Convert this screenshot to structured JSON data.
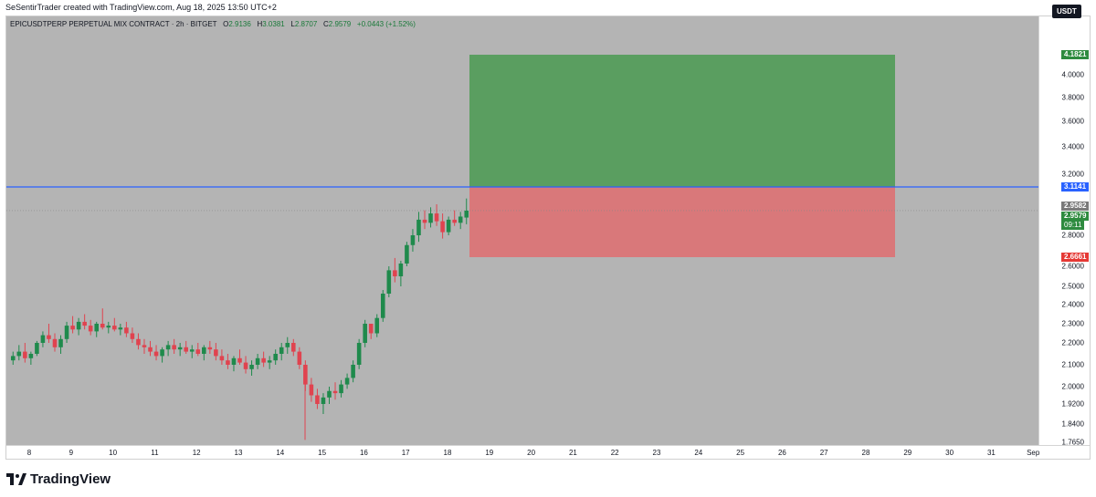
{
  "header": {
    "caption": "SeSentirTrader created with TradingView.com, Aug 18, 2025 13:50 UTC+2"
  },
  "legend": {
    "symbol": "EPICUSDTPERP PERPETUAL MIX CONTRACT · 2h · BITGET",
    "o_label": "O",
    "o": "2.9136",
    "h_label": "H",
    "h": "3.0381",
    "l_label": "L",
    "l": "2.8707",
    "c_label": "C",
    "c": "2.9579",
    "change": "+0.0443 (+1.52%)"
  },
  "currency_button": "USDT",
  "price_axis": {
    "labels": [
      "4.0000",
      "3.8000",
      "3.6000",
      "3.4000",
      "3.2000",
      "2.8000",
      "2.6000",
      "2.5000",
      "2.4000",
      "2.3000",
      "2.2000",
      "2.1000",
      "2.0000",
      "1.9200",
      "1.8400",
      "1.7650"
    ]
  },
  "price_tags": {
    "target": "4.1821",
    "entry": "3.1141",
    "prev_close": "2.9582",
    "last": "2.9579",
    "countdown": "09:11",
    "stop": "2.6661"
  },
  "time_axis": {
    "labels": [
      "8",
      "9",
      "10",
      "11",
      "12",
      "13",
      "14",
      "15",
      "16",
      "17",
      "18",
      "19",
      "20",
      "21",
      "22",
      "23",
      "24",
      "25",
      "26",
      "27",
      "28",
      "29",
      "30",
      "31",
      "Sep"
    ]
  },
  "brand": {
    "name": "TradingView"
  },
  "colors": {
    "chart_bg": "#b4b4b4",
    "up": "#1f8a4c",
    "down": "#e0434f",
    "profit_zone": "#5a9e60",
    "loss_zone": "#d9787a",
    "entry_line": "#2962ff",
    "target_tag": "#2e8b3f",
    "stop_tag": "#e53935"
  },
  "chart_data": {
    "type": "candlestick",
    "interval": "2h",
    "ylim": [
      1.765,
      4.25
    ],
    "position": {
      "kind": "long",
      "entry": 3.1141,
      "target": 4.1821,
      "stop": 2.6661
    },
    "ohlc": [
      [
        2.12,
        2.16,
        2.1,
        2.14
      ],
      [
        2.14,
        2.19,
        2.12,
        2.16
      ],
      [
        2.16,
        2.2,
        2.11,
        2.13
      ],
      [
        2.13,
        2.16,
        2.1,
        2.15
      ],
      [
        2.15,
        2.21,
        2.14,
        2.2
      ],
      [
        2.2,
        2.26,
        2.18,
        2.24
      ],
      [
        2.24,
        2.3,
        2.2,
        2.22
      ],
      [
        2.22,
        2.25,
        2.16,
        2.18
      ],
      [
        2.18,
        2.24,
        2.15,
        2.22
      ],
      [
        2.22,
        2.31,
        2.2,
        2.29
      ],
      [
        2.29,
        2.34,
        2.25,
        2.27
      ],
      [
        2.27,
        2.33,
        2.24,
        2.31
      ],
      [
        2.31,
        2.35,
        2.27,
        2.29
      ],
      [
        2.29,
        2.32,
        2.24,
        2.26
      ],
      [
        2.26,
        2.31,
        2.23,
        2.3
      ],
      [
        2.3,
        2.38,
        2.27,
        2.28
      ],
      [
        2.28,
        2.31,
        2.25,
        2.29
      ],
      [
        2.29,
        2.33,
        2.26,
        2.27
      ],
      [
        2.27,
        2.3,
        2.24,
        2.28
      ],
      [
        2.28,
        2.31,
        2.23,
        2.25
      ],
      [
        2.25,
        2.28,
        2.2,
        2.22
      ],
      [
        2.22,
        2.25,
        2.17,
        2.19
      ],
      [
        2.19,
        2.22,
        2.15,
        2.18
      ],
      [
        2.18,
        2.21,
        2.14,
        2.16
      ],
      [
        2.16,
        2.19,
        2.12,
        2.14
      ],
      [
        2.14,
        2.18,
        2.11,
        2.17
      ],
      [
        2.17,
        2.21,
        2.14,
        2.19
      ],
      [
        2.19,
        2.22,
        2.15,
        2.17
      ],
      [
        2.17,
        2.2,
        2.14,
        2.18
      ],
      [
        2.18,
        2.21,
        2.15,
        2.16
      ],
      [
        2.16,
        2.19,
        2.13,
        2.17
      ],
      [
        2.17,
        2.2,
        2.14,
        2.15
      ],
      [
        2.15,
        2.19,
        2.12,
        2.18
      ],
      [
        2.18,
        2.21,
        2.15,
        2.17
      ],
      [
        2.17,
        2.2,
        2.12,
        2.14
      ],
      [
        2.14,
        2.17,
        2.1,
        2.12
      ],
      [
        2.12,
        2.15,
        2.08,
        2.1
      ],
      [
        2.1,
        2.14,
        2.07,
        2.13
      ],
      [
        2.13,
        2.17,
        2.1,
        2.11
      ],
      [
        2.11,
        2.14,
        2.06,
        2.08
      ],
      [
        2.08,
        2.12,
        2.05,
        2.1
      ],
      [
        2.1,
        2.15,
        2.08,
        2.13
      ],
      [
        2.13,
        2.16,
        2.09,
        2.11
      ],
      [
        2.11,
        2.14,
        2.08,
        2.12
      ],
      [
        2.12,
        2.17,
        2.1,
        2.15
      ],
      [
        2.15,
        2.2,
        2.12,
        2.18
      ],
      [
        2.18,
        2.23,
        2.15,
        2.2
      ],
      [
        2.2,
        2.22,
        2.14,
        2.16
      ],
      [
        2.16,
        2.18,
        2.08,
        2.1
      ],
      [
        2.1,
        2.12,
        1.98,
        2.01
      ],
      [
        2.01,
        2.04,
        1.93,
        1.96
      ],
      [
        1.96,
        1.99,
        1.9,
        1.92
      ],
      [
        1.92,
        1.97,
        1.88,
        1.95
      ],
      [
        1.95,
        2.0,
        1.92,
        1.98
      ],
      [
        1.98,
        2.02,
        1.94,
        1.97
      ],
      [
        1.97,
        2.03,
        1.95,
        2.01
      ],
      [
        2.01,
        2.06,
        1.99,
        2.04
      ],
      [
        2.04,
        2.12,
        2.02,
        2.1
      ],
      [
        2.1,
        2.22,
        2.08,
        2.2
      ],
      [
        2.2,
        2.32,
        2.18,
        2.3
      ],
      [
        2.3,
        2.28,
        2.22,
        2.25
      ],
      [
        2.25,
        2.35,
        2.23,
        2.33
      ],
      [
        2.33,
        2.48,
        2.31,
        2.46
      ],
      [
        2.46,
        2.6,
        2.44,
        2.58
      ],
      [
        2.58,
        2.66,
        2.52,
        2.55
      ],
      [
        2.55,
        2.64,
        2.5,
        2.62
      ],
      [
        2.62,
        2.76,
        2.6,
        2.74
      ],
      [
        2.74,
        2.84,
        2.7,
        2.8
      ],
      [
        2.8,
        2.95,
        2.76,
        2.9
      ],
      [
        2.9,
        2.96,
        2.84,
        2.88
      ],
      [
        2.88,
        2.98,
        2.85,
        2.94
      ],
      [
        2.94,
        3.0,
        2.86,
        2.89
      ],
      [
        2.89,
        2.94,
        2.78,
        2.82
      ],
      [
        2.82,
        2.92,
        2.8,
        2.9
      ],
      [
        2.9,
        2.96,
        2.86,
        2.88
      ],
      [
        2.88,
        2.95,
        2.84,
        2.92
      ],
      [
        2.9136,
        3.0381,
        2.8707,
        2.9579
      ]
    ]
  }
}
